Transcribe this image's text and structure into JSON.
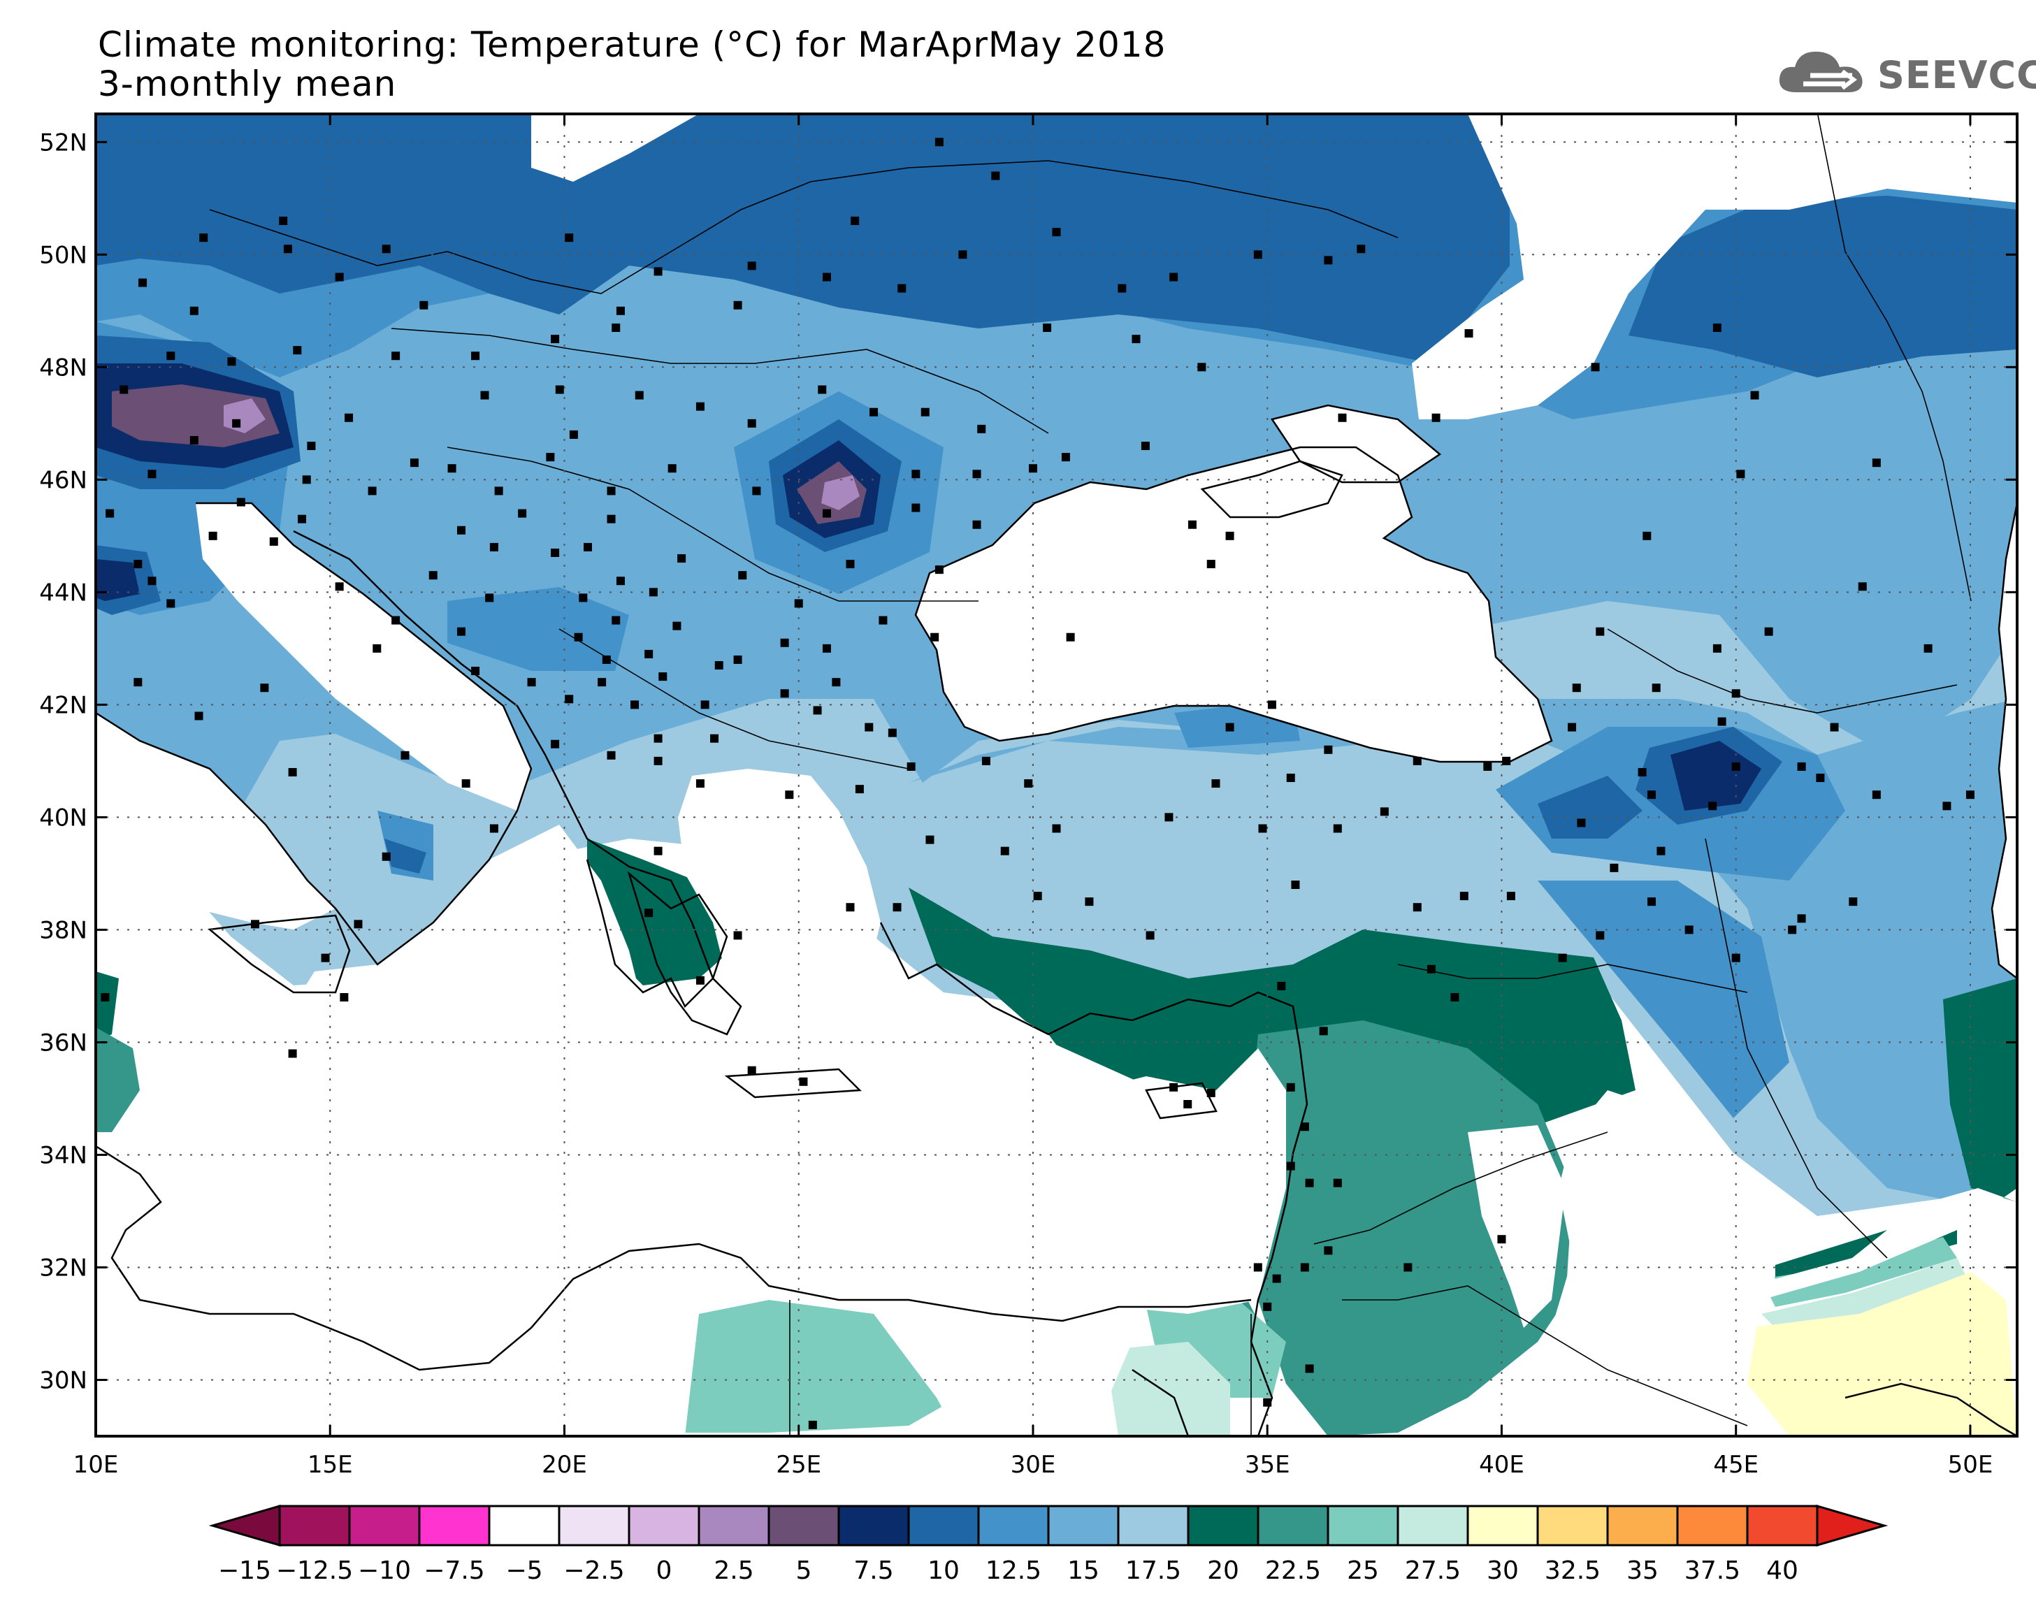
{
  "title": {
    "line1": "Climate monitoring: Temperature (°C) for MarAprMay 2018",
    "line2": "3-monthly mean"
  },
  "logo": {
    "text": "SEEVCCC",
    "icon": "cloud-icon",
    "color": "#6e6e6e"
  },
  "map": {
    "lon_range": [
      10,
      51
    ],
    "lat_range": [
      29,
      52.5
    ],
    "x_ticks": [
      {
        "value": 10,
        "label": "10E"
      },
      {
        "value": 15,
        "label": "15E"
      },
      {
        "value": 20,
        "label": "20E"
      },
      {
        "value": 25,
        "label": "25E"
      },
      {
        "value": 30,
        "label": "30E"
      },
      {
        "value": 35,
        "label": "35E"
      },
      {
        "value": 40,
        "label": "40E"
      },
      {
        "value": 45,
        "label": "45E"
      },
      {
        "value": 50,
        "label": "50E"
      }
    ],
    "y_ticks": [
      {
        "value": 30,
        "label": "30N"
      },
      {
        "value": 32,
        "label": "32N"
      },
      {
        "value": 34,
        "label": "34N"
      },
      {
        "value": 36,
        "label": "36N"
      },
      {
        "value": 38,
        "label": "38N"
      },
      {
        "value": 40,
        "label": "40N"
      },
      {
        "value": 42,
        "label": "42N"
      },
      {
        "value": 44,
        "label": "44N"
      },
      {
        "value": 46,
        "label": "46N"
      },
      {
        "value": 48,
        "label": "48N"
      },
      {
        "value": 50,
        "label": "50N"
      },
      {
        "value": 52,
        "label": "52N"
      }
    ],
    "gridlines": "dotted"
  },
  "colorbar": {
    "labels": [
      "−15",
      "−12.5",
      "−10",
      "−7.5",
      "−5",
      "−2.5",
      "0",
      "2.5",
      "5",
      "7.5",
      "10",
      "12.5",
      "15",
      "17.5",
      "20",
      "22.5",
      "25",
      "27.5",
      "30",
      "32.5",
      "35",
      "37.5",
      "40"
    ],
    "under_color": "#7a0a3e",
    "over_color": "#e2201b",
    "colors": [
      "#a0125c",
      "#c61f8c",
      "#ff33d0",
      "#ffffff",
      "#efe2f4",
      "#d8b4e2",
      "#a888be",
      "#6b4f75",
      "#0b2c6a",
      "#1e66a5",
      "#4392c9",
      "#6aaed8",
      "#9ecae1",
      "#006a58",
      "#35968a",
      "#7ccdbd",
      "#c5ebe1",
      "#ffffc6",
      "#ffdb7d",
      "#fcae4c",
      "#fc8a3a",
      "#f24a2e"
    ]
  },
  "fields": {
    "bands": [
      {
        "name": "below-7.5",
        "color": "#0b2c6a"
      },
      {
        "name": "7.5-10",
        "color": "#1e66a5"
      },
      {
        "name": "10-12.5",
        "color": "#4392c9"
      },
      {
        "name": "12.5-15",
        "color": "#6aaed8"
      },
      {
        "name": "15-17.5",
        "color": "#9ecae1"
      },
      {
        "name": "17.5-20",
        "color": "#006a58"
      },
      {
        "name": "20-22.5",
        "color": "#35968a"
      },
      {
        "name": "22.5-25",
        "color": "#7ccdbd"
      },
      {
        "name": "25-27.5",
        "color": "#c5ebe1"
      },
      {
        "name": "27.5-30",
        "color": "#ffffc6"
      },
      {
        "name": "2.5-5",
        "color": "#6b4f75"
      },
      {
        "name": "0-2.5",
        "color": "#a888be"
      }
    ]
  },
  "stations": [
    [
      12.3,
      50.3
    ],
    [
      14.0,
      50.6
    ],
    [
      16.2,
      50.1
    ],
    [
      11.0,
      49.5
    ],
    [
      12.1,
      49.0
    ],
    [
      14.1,
      50.1
    ],
    [
      17.0,
      49.1
    ],
    [
      15.2,
      49.6
    ],
    [
      18.1,
      48.2
    ],
    [
      19.8,
      48.5
    ],
    [
      21.2,
      49.0
    ],
    [
      20.1,
      50.3
    ],
    [
      21.1,
      48.7
    ],
    [
      14.3,
      48.3
    ],
    [
      16.4,
      48.2
    ],
    [
      12.9,
      48.1
    ],
    [
      11.6,
      48.2
    ],
    [
      10.6,
      47.6
    ],
    [
      13.0,
      47.0
    ],
    [
      15.4,
      47.1
    ],
    [
      14.6,
      46.6
    ],
    [
      12.1,
      46.7
    ],
    [
      11.2,
      46.1
    ],
    [
      10.3,
      45.4
    ],
    [
      12.5,
      45.0
    ],
    [
      10.9,
      44.5
    ],
    [
      13.1,
      45.6
    ],
    [
      14.5,
      46.0
    ],
    [
      15.9,
      45.8
    ],
    [
      16.8,
      46.3
    ],
    [
      17.6,
      46.2
    ],
    [
      18.6,
      45.8
    ],
    [
      19.7,
      46.4
    ],
    [
      20.2,
      46.8
    ],
    [
      18.3,
      47.5
    ],
    [
      19.9,
      47.6
    ],
    [
      21.6,
      47.5
    ],
    [
      22.3,
      46.2
    ],
    [
      21.0,
      45.8
    ],
    [
      22.9,
      47.3
    ],
    [
      24.0,
      47.0
    ],
    [
      25.5,
      47.6
    ],
    [
      26.6,
      47.2
    ],
    [
      27.7,
      47.2
    ],
    [
      28.9,
      46.9
    ],
    [
      27.5,
      46.1
    ],
    [
      25.6,
      45.4
    ],
    [
      26.1,
      44.5
    ],
    [
      28.0,
      44.4
    ],
    [
      27.5,
      45.5
    ],
    [
      28.8,
      45.2
    ],
    [
      23.8,
      44.3
    ],
    [
      25.0,
      43.8
    ],
    [
      27.9,
      43.2
    ],
    [
      26.8,
      43.5
    ],
    [
      23.3,
      42.7
    ],
    [
      24.7,
      42.2
    ],
    [
      25.6,
      43.0
    ],
    [
      23.0,
      42.0
    ],
    [
      21.5,
      42.0
    ],
    [
      20.9,
      42.8
    ],
    [
      21.8,
      42.9
    ],
    [
      22.4,
      43.4
    ],
    [
      20.4,
      43.9
    ],
    [
      21.2,
      44.2
    ],
    [
      19.8,
      44.7
    ],
    [
      20.5,
      44.8
    ],
    [
      21.0,
      45.3
    ],
    [
      19.1,
      45.4
    ],
    [
      17.8,
      45.1
    ],
    [
      18.5,
      44.8
    ],
    [
      17.2,
      44.3
    ],
    [
      18.4,
      43.9
    ],
    [
      17.8,
      43.3
    ],
    [
      16.4,
      43.5
    ],
    [
      15.2,
      44.1
    ],
    [
      14.4,
      45.3
    ],
    [
      13.8,
      44.9
    ],
    [
      16.0,
      43.0
    ],
    [
      18.1,
      42.6
    ],
    [
      19.3,
      42.4
    ],
    [
      19.8,
      41.3
    ],
    [
      20.1,
      42.1
    ],
    [
      21.0,
      41.1
    ],
    [
      22.0,
      41.4
    ],
    [
      22.9,
      40.6
    ],
    [
      23.2,
      41.4
    ],
    [
      25.4,
      41.9
    ],
    [
      26.5,
      41.6
    ],
    [
      24.8,
      40.4
    ],
    [
      22.0,
      39.4
    ],
    [
      21.8,
      38.3
    ],
    [
      22.9,
      37.1
    ],
    [
      23.7,
      37.9
    ],
    [
      26.1,
      38.4
    ],
    [
      27.1,
      38.4
    ],
    [
      25.1,
      35.3
    ],
    [
      24.0,
      35.5
    ],
    [
      29.0,
      41.0
    ],
    [
      32.9,
      40.0
    ],
    [
      30.5,
      39.8
    ],
    [
      30.1,
      38.6
    ],
    [
      29.4,
      39.4
    ],
    [
      27.8,
      39.6
    ],
    [
      31.2,
      38.5
    ],
    [
      32.5,
      37.9
    ],
    [
      35.3,
      37.0
    ],
    [
      36.2,
      36.2
    ],
    [
      33.0,
      35.2
    ],
    [
      33.3,
      34.9
    ],
    [
      33.8,
      35.1
    ],
    [
      35.5,
      35.2
    ],
    [
      35.8,
      34.5
    ],
    [
      35.5,
      33.8
    ],
    [
      35.9,
      33.5
    ],
    [
      36.5,
      33.5
    ],
    [
      36.3,
      32.3
    ],
    [
      35.8,
      32.0
    ],
    [
      35.2,
      31.8
    ],
    [
      35.0,
      31.3
    ],
    [
      34.8,
      32.0
    ],
    [
      35.9,
      30.2
    ],
    [
      35.0,
      29.6
    ],
    [
      38.0,
      32.0
    ],
    [
      40.0,
      32.5
    ],
    [
      38.5,
      37.3
    ],
    [
      39.0,
      36.8
    ],
    [
      41.3,
      37.5
    ],
    [
      42.1,
      37.9
    ],
    [
      43.2,
      38.5
    ],
    [
      44.0,
      38.0
    ],
    [
      45.0,
      37.5
    ],
    [
      46.2,
      38.0
    ],
    [
      47.5,
      38.5
    ],
    [
      49.5,
      40.2
    ],
    [
      50.0,
      40.4
    ],
    [
      48.0,
      40.4
    ],
    [
      46.8,
      40.7
    ],
    [
      45.0,
      40.9
    ],
    [
      44.5,
      40.2
    ],
    [
      43.0,
      40.8
    ],
    [
      44.7,
      41.7
    ],
    [
      45.0,
      42.2
    ],
    [
      41.6,
      42.3
    ],
    [
      40.1,
      41.0
    ],
    [
      41.5,
      41.6
    ],
    [
      43.3,
      42.3
    ],
    [
      39.7,
      40.9
    ],
    [
      38.2,
      41.0
    ],
    [
      36.3,
      41.2
    ],
    [
      34.2,
      41.6
    ],
    [
      35.1,
      42.0
    ],
    [
      33.9,
      40.6
    ],
    [
      35.5,
      40.7
    ],
    [
      37.5,
      40.1
    ],
    [
      36.5,
      39.8
    ],
    [
      34.9,
      39.8
    ],
    [
      35.6,
      38.8
    ],
    [
      38.2,
      38.4
    ],
    [
      39.2,
      38.6
    ],
    [
      40.2,
      38.6
    ],
    [
      41.7,
      39.9
    ],
    [
      42.4,
      39.1
    ],
    [
      43.4,
      39.4
    ],
    [
      46.4,
      38.2
    ],
    [
      47.1,
      41.6
    ],
    [
      45.1,
      46.1
    ],
    [
      48.0,
      46.3
    ],
    [
      43.1,
      45.0
    ],
    [
      45.4,
      47.5
    ],
    [
      42.0,
      48.0
    ],
    [
      38.6,
      47.1
    ],
    [
      36.6,
      47.1
    ],
    [
      34.2,
      45.0
    ],
    [
      33.8,
      44.5
    ],
    [
      33.4,
      45.2
    ],
    [
      32.4,
      46.6
    ],
    [
      30.7,
      46.4
    ],
    [
      28.8,
      46.1
    ],
    [
      30.3,
      48.7
    ],
    [
      32.2,
      48.5
    ],
    [
      33.6,
      48.0
    ],
    [
      36.3,
      49.9
    ],
    [
      33.0,
      49.6
    ],
    [
      31.9,
      49.4
    ],
    [
      30.5,
      50.4
    ],
    [
      28.5,
      50.0
    ],
    [
      26.2,
      50.6
    ],
    [
      24.0,
      49.8
    ],
    [
      22.0,
      49.7
    ],
    [
      23.7,
      49.1
    ],
    [
      25.6,
      49.6
    ],
    [
      27.2,
      49.4
    ],
    [
      29.2,
      51.4
    ],
    [
      34.8,
      50.0
    ],
    [
      37.0,
      50.1
    ],
    [
      39.3,
      48.6
    ],
    [
      28.0,
      52.0
    ],
    [
      44.6,
      48.7
    ],
    [
      47.7,
      44.1
    ],
    [
      49.1,
      43.0
    ],
    [
      45.7,
      43.3
    ],
    [
      44.6,
      43.0
    ],
    [
      42.1,
      43.3
    ],
    [
      46.4,
      40.9
    ],
    [
      43.2,
      40.4
    ],
    [
      29.9,
      40.6
    ],
    [
      27.4,
      40.9
    ],
    [
      27.0,
      41.5
    ],
    [
      30.8,
      43.2
    ],
    [
      24.1,
      45.8
    ],
    [
      20.3,
      43.2
    ],
    [
      21.9,
      44.0
    ],
    [
      22.5,
      44.6
    ],
    [
      21.1,
      43.5
    ],
    [
      20.8,
      42.4
    ],
    [
      22.1,
      42.5
    ],
    [
      22.0,
      41.0
    ],
    [
      23.7,
      42.8
    ],
    [
      24.7,
      43.1
    ],
    [
      25.8,
      42.4
    ],
    [
      26.3,
      40.5
    ],
    [
      14.2,
      40.8
    ],
    [
      16.6,
      41.1
    ],
    [
      15.6,
      38.1
    ],
    [
      13.4,
      38.1
    ],
    [
      16.2,
      39.3
    ],
    [
      17.9,
      40.6
    ],
    [
      18.5,
      39.8
    ],
    [
      12.2,
      41.8
    ],
    [
      13.6,
      42.3
    ],
    [
      11.6,
      43.8
    ],
    [
      10.9,
      42.4
    ],
    [
      14.9,
      37.5
    ],
    [
      15.3,
      36.8
    ],
    [
      14.2,
      35.8
    ],
    [
      10.2,
      36.8
    ],
    [
      25.3,
      29.2
    ],
    [
      11.2,
      44.2
    ],
    [
      30.0,
      46.2
    ]
  ]
}
